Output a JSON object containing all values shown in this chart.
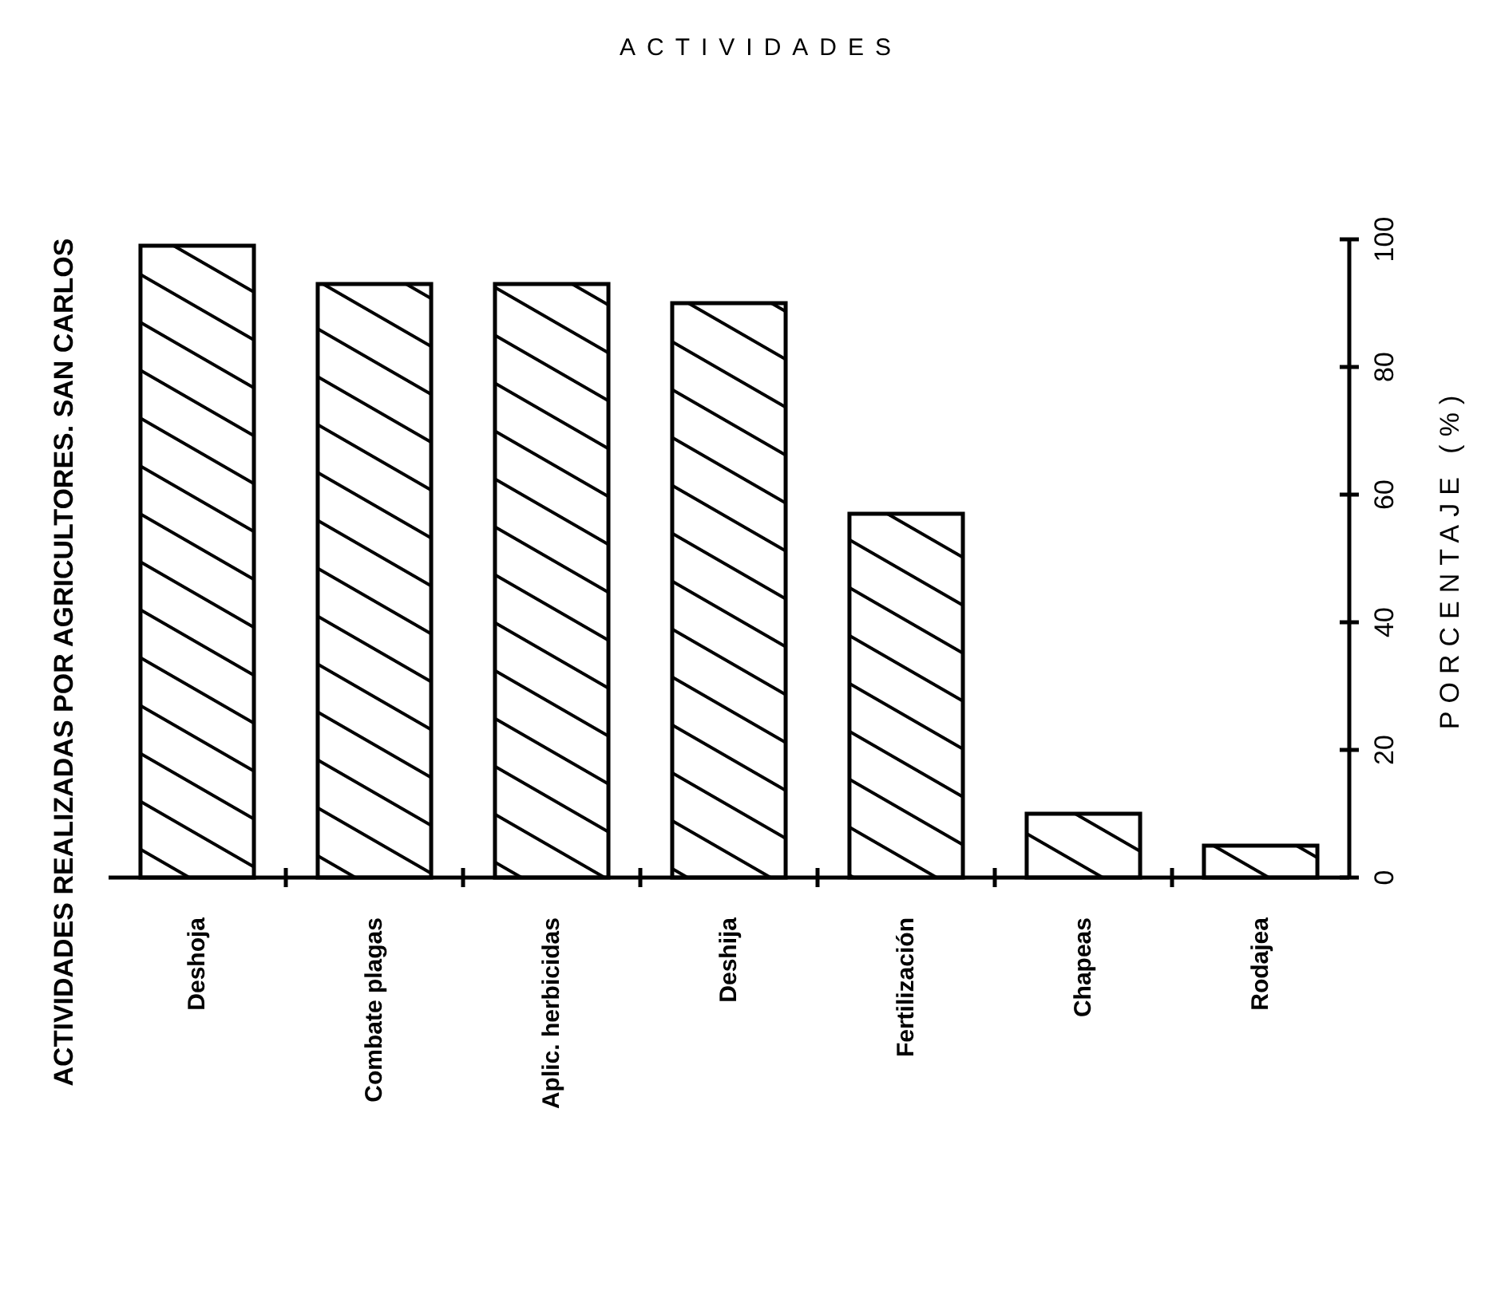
{
  "chart_data": {
    "type": "bar",
    "title": "ACTIVIDADES REALIZADAS POR AGRICULTORES. SAN CARLOS",
    "annotations": [
      "ACTIVIDADES"
    ],
    "ylabel": "PORCENTAJE (%)",
    "categories": [
      "Deshoja",
      "Combate plagas",
      "Aplic. herbicidas",
      "Deshija",
      "Fertilización",
      "Chapeas",
      "Rodajea"
    ],
    "values": [
      99,
      93,
      93,
      90,
      57,
      10,
      5
    ],
    "color": "#000000",
    "ylim": [
      0,
      100
    ],
    "yticks": [
      0,
      20,
      40,
      60,
      80,
      100
    ],
    "grid": false
  }
}
